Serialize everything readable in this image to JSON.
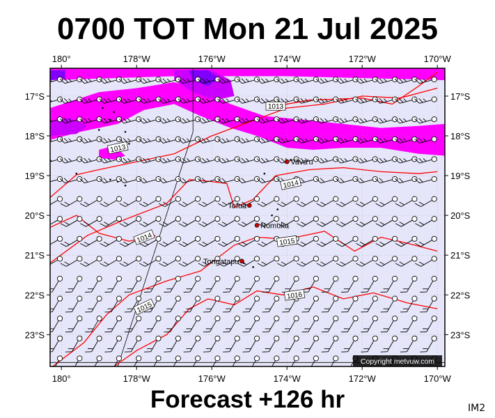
{
  "header": {
    "title": "0700 TOT Mon 21 Jul 2025"
  },
  "footer": {
    "subtitle": "Forecast +126 hr",
    "code": "IM2",
    "copyright": "Copyright metvuw.com"
  },
  "map_data": {
    "lon_range": [
      -180.3,
      -169.8
    ],
    "lat_range": [
      -23.8,
      -16.3
    ],
    "lon_ticks": [
      {
        "value": -180,
        "label": "180°"
      },
      {
        "value": -178,
        "label": "178°W"
      },
      {
        "value": -176,
        "label": "176°W"
      },
      {
        "value": -174,
        "label": "174°W"
      },
      {
        "value": -172,
        "label": "172°W"
      },
      {
        "value": -170,
        "label": "170°W"
      }
    ],
    "lat_ticks": [
      {
        "value": -17,
        "label": "17°S"
      },
      {
        "value": -18,
        "label": "18°S"
      },
      {
        "value": -19,
        "label": "19°S"
      },
      {
        "value": -20,
        "label": "20°S"
      },
      {
        "value": -21,
        "label": "21°S"
      },
      {
        "value": -22,
        "label": "22°S"
      },
      {
        "value": -23,
        "label": "23°S"
      }
    ],
    "places": [
      {
        "name": "Vava'u",
        "lon": -174.0,
        "lat": -18.65
      },
      {
        "name": "Tofua",
        "lon": -175.0,
        "lat": -19.75
      },
      {
        "name": "Nomuka",
        "lon": -174.8,
        "lat": -20.25
      },
      {
        "name": "Tongatapu",
        "lon": -175.2,
        "lat": -21.15
      }
    ],
    "isobars": [
      {
        "label": "1013",
        "points": [
          [
            -180.3,
            -19.55
          ],
          [
            -179.6,
            -18.98
          ],
          [
            -179.0,
            -18.85
          ],
          [
            -178.0,
            -18.65
          ],
          [
            -177.0,
            -18.45
          ],
          [
            -176.0,
            -18.0
          ],
          [
            -175.0,
            -17.65
          ],
          [
            -174.0,
            -17.3
          ],
          [
            -173.0,
            -17.2
          ],
          [
            -172.0,
            -17.0
          ],
          [
            -171.0,
            -17.05
          ],
          [
            -170.0,
            -16.8
          ]
        ],
        "label_at": [
          -178.5,
          -18.3
        ]
      },
      {
        "label": "1013",
        "points": [
          [
            -174.3,
            -17.25
          ],
          [
            -173.4,
            -17.1
          ],
          [
            -172.0,
            -17.05
          ],
          [
            -171.2,
            -17.2
          ],
          [
            -170.5,
            -16.75
          ],
          [
            -170.0,
            -16.4
          ]
        ],
        "label_at": [
          -174.3,
          -17.25
        ]
      },
      {
        "label": "1014",
        "points": [
          [
            -180.3,
            -21.2
          ],
          [
            -179.3,
            -20.5
          ],
          [
            -178.3,
            -20.1
          ],
          [
            -177.2,
            -19.7
          ],
          [
            -176.6,
            -19.1
          ],
          [
            -176.0,
            -19.15
          ],
          [
            -175.6,
            -19.2
          ],
          [
            -175.4,
            -19.8
          ],
          [
            -174.9,
            -19.6
          ],
          [
            -174.3,
            -19.0
          ],
          [
            -173.4,
            -18.85
          ],
          [
            -172.5,
            -18.8
          ],
          [
            -171.5,
            -18.9
          ],
          [
            -170.5,
            -18.95
          ],
          [
            -170.0,
            -18.9
          ]
        ],
        "label_at": [
          -173.9,
          -19.2
        ]
      },
      {
        "label": "1014",
        "points": [
          [
            -180.3,
            -20.3
          ],
          [
            -179.6,
            -20.0
          ],
          [
            -179.0,
            -20.45
          ],
          [
            -178.2,
            -20.65
          ],
          [
            -177.5,
            -20.5
          ]
        ],
        "label_at": [
          -177.8,
          -20.55
        ]
      },
      {
        "label": "1015",
        "points": [
          [
            -180.3,
            -23.85
          ],
          [
            -179.4,
            -23.2
          ],
          [
            -178.8,
            -22.5
          ],
          [
            -178.2,
            -22.0
          ],
          [
            -177.2,
            -21.65
          ],
          [
            -176.3,
            -21.4
          ],
          [
            -175.4,
            -20.75
          ],
          [
            -174.8,
            -20.55
          ],
          [
            -174.0,
            -20.6
          ],
          [
            -173.0,
            -20.4
          ],
          [
            -172.2,
            -20.9
          ],
          [
            -171.5,
            -20.55
          ],
          [
            -170.8,
            -20.7
          ],
          [
            -170.0,
            -20.9
          ]
        ],
        "label_at": [
          -174.0,
          -20.65
        ]
      },
      {
        "label": "1016",
        "points": [
          [
            -178.6,
            -23.8
          ],
          [
            -178.0,
            -23.4
          ],
          [
            -177.2,
            -23.0
          ],
          [
            -176.6,
            -22.35
          ],
          [
            -176.1,
            -22.1
          ],
          [
            -175.4,
            -22.25
          ],
          [
            -174.8,
            -21.9
          ],
          [
            -174.1,
            -22.0
          ],
          [
            -173.3,
            -21.8
          ],
          [
            -172.5,
            -22.1
          ],
          [
            -171.7,
            -21.95
          ],
          [
            -170.8,
            -22.2
          ],
          [
            -170.0,
            -22.35
          ]
        ],
        "label_at": [
          -173.8,
          -22.0
        ]
      }
    ],
    "legend_labels_extra": [
      {
        "label": "1015",
        "at": [
          -177.8,
          -22.3
        ]
      }
    ],
    "precip_blobs": [
      {
        "level": "light",
        "color": "#ff00ff",
        "points": [
          [
            -180.3,
            -17.3
          ],
          [
            -179.0,
            -16.9
          ],
          [
            -178.0,
            -16.8
          ],
          [
            -177.0,
            -16.65
          ],
          [
            -176.4,
            -16.8
          ],
          [
            -175.5,
            -17.2
          ],
          [
            -174.6,
            -17.5
          ],
          [
            -173.5,
            -17.6
          ],
          [
            -172.5,
            -17.7
          ],
          [
            -171.5,
            -17.8
          ],
          [
            -170.5,
            -17.75
          ],
          [
            -169.8,
            -17.7
          ],
          [
            -169.8,
            -18.5
          ],
          [
            -170.5,
            -18.45
          ],
          [
            -171.5,
            -18.3
          ],
          [
            -172.5,
            -18.3
          ],
          [
            -173.3,
            -18.35
          ],
          [
            -174.0,
            -18.3
          ],
          [
            -174.8,
            -18.0
          ],
          [
            -175.5,
            -17.8
          ],
          [
            -176.3,
            -17.5
          ],
          [
            -177.0,
            -17.2
          ],
          [
            -177.8,
            -17.35
          ],
          [
            -178.5,
            -17.7
          ],
          [
            -179.5,
            -17.9
          ],
          [
            -180.3,
            -18.1
          ]
        ]
      },
      {
        "level": "light",
        "color": "#ff00ff",
        "points": [
          [
            -180.3,
            -16.3
          ],
          [
            -169.8,
            -16.3
          ],
          [
            -169.8,
            -16.6
          ],
          [
            -174.0,
            -16.5
          ],
          [
            -177.0,
            -16.5
          ],
          [
            -180.3,
            -16.6
          ]
        ]
      },
      {
        "level": "light",
        "color": "#ff00ff",
        "points": [
          [
            -179.0,
            -18.35
          ],
          [
            -178.6,
            -18.25
          ],
          [
            -178.3,
            -18.5
          ],
          [
            -178.6,
            -18.6
          ],
          [
            -179.0,
            -18.55
          ]
        ]
      },
      {
        "level": "medium",
        "color": "#cc00ff",
        "points": [
          [
            -177.0,
            -16.35
          ],
          [
            -176.0,
            -16.35
          ],
          [
            -175.5,
            -16.6
          ],
          [
            -175.4,
            -17.0
          ],
          [
            -175.9,
            -17.1
          ],
          [
            -176.5,
            -16.9
          ],
          [
            -177.0,
            -16.6
          ]
        ]
      },
      {
        "level": "medium",
        "color": "#cc00ff",
        "points": [
          [
            -180.3,
            -17.65
          ],
          [
            -179.8,
            -17.55
          ],
          [
            -179.3,
            -17.75
          ],
          [
            -179.6,
            -17.95
          ],
          [
            -180.3,
            -18.0
          ]
        ]
      },
      {
        "level": "heavy",
        "color": "#8000ff",
        "points": [
          [
            -176.6,
            -16.35
          ],
          [
            -176.1,
            -16.35
          ],
          [
            -175.8,
            -16.55
          ],
          [
            -176.1,
            -16.75
          ],
          [
            -176.5,
            -16.6
          ]
        ]
      },
      {
        "level": "heavy",
        "color": "#8000ff",
        "points": [
          [
            -180.3,
            -16.35
          ],
          [
            -179.9,
            -16.35
          ],
          [
            -179.9,
            -16.55
          ],
          [
            -180.3,
            -16.6
          ]
        ]
      }
    ],
    "colors": {
      "ocean": "#e6e6fa",
      "isobar": "#ff0000",
      "frame": "#000000",
      "place": "#cc0000"
    }
  }
}
